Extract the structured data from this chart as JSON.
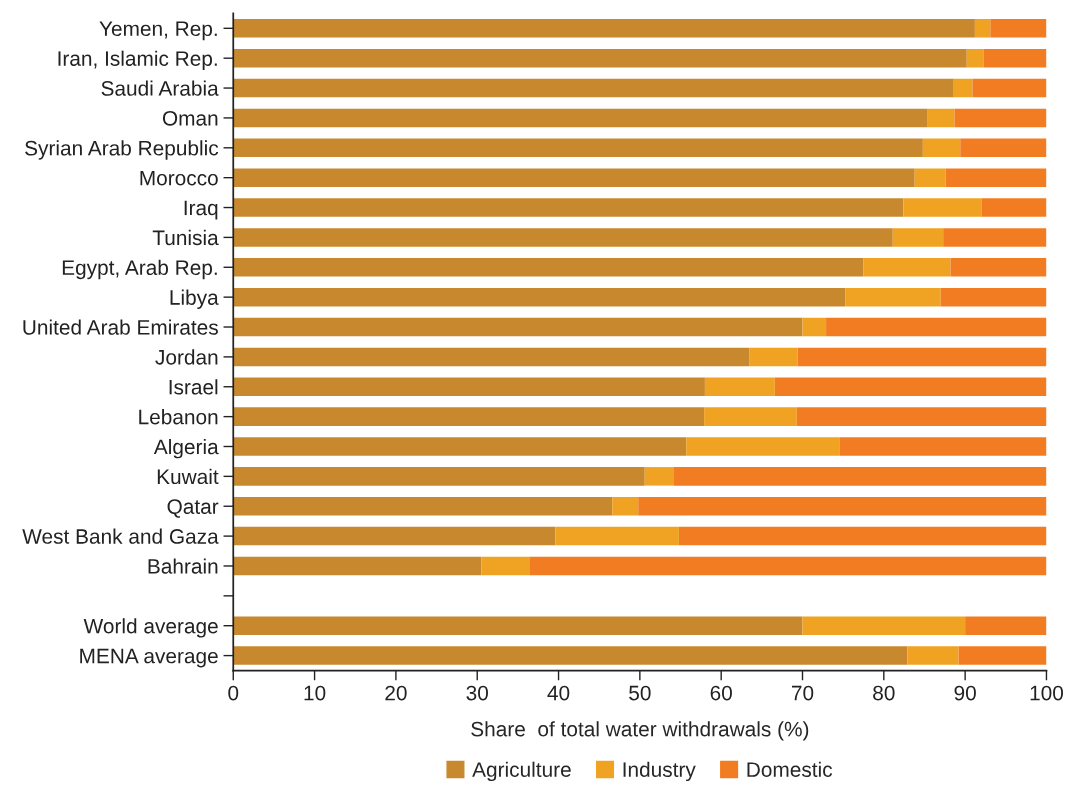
{
  "chart_data": {
    "type": "bar",
    "orientation": "horizontal",
    "stacked": true,
    "xlabel": "Share  of total water withdrawals (%)",
    "categories": [
      "Yemen, Rep.",
      "Iran, Islamic Rep.",
      "Saudi Arabia",
      "Oman",
      "Syrian Arab Republic",
      "Morocco",
      "Iraq",
      "Tunisia",
      "Egypt, Arab Rep.",
      "Libya",
      "United Arab Emirates",
      "Jordan",
      "Israel",
      "Lebanon",
      "Algeria",
      "Kuwait",
      "Qatar",
      "West Bank and Gaza",
      "Bahrain",
      null,
      "World average",
      "MENA average"
    ],
    "series": [
      {
        "name": "Agriculture",
        "color": "#c8892e",
        "values": [
          91.2,
          90.2,
          88.6,
          85.4,
          84.8,
          83.8,
          82.4,
          81.1,
          77.5,
          75.3,
          70.0,
          63.5,
          58.0,
          57.9,
          55.7,
          50.6,
          46.6,
          39.6,
          30.5,
          null,
          70.0,
          82.9
        ]
      },
      {
        "name": "Industry",
        "color": "#f0a323",
        "values": [
          1.9,
          2.1,
          2.3,
          3.3,
          4.6,
          3.8,
          9.6,
          6.2,
          10.7,
          11.7,
          2.9,
          5.9,
          8.6,
          11.4,
          18.9,
          3.6,
          3.2,
          15.2,
          5.9,
          null,
          20.0,
          6.3
        ]
      },
      {
        "name": "Domestic",
        "color": "#f27c22",
        "values": [
          6.9,
          7.7,
          9.1,
          11.3,
          10.6,
          12.4,
          8.0,
          12.7,
          11.8,
          13.0,
          27.1,
          30.6,
          33.4,
          30.7,
          25.4,
          45.8,
          50.2,
          45.2,
          63.6,
          null,
          10.0,
          10.8
        ]
      }
    ],
    "xlim": [
      0,
      100
    ],
    "xticks": [
      0,
      10,
      20,
      30,
      40,
      50,
      60,
      70,
      80,
      90,
      100
    ],
    "grid": false,
    "legend": "bottom"
  }
}
